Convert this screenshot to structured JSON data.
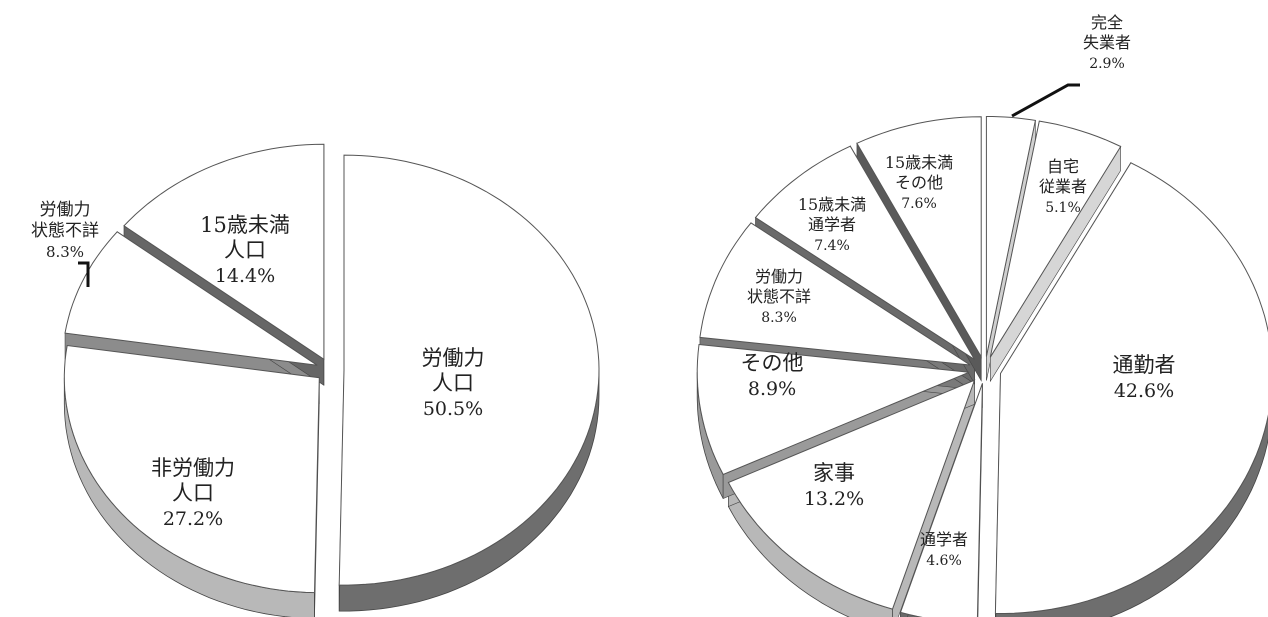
{
  "chart_data": [
    {
      "type": "pie",
      "style": "3d-exploded",
      "slices": [
        {
          "key": "labor",
          "label_lines": [
            "労働力",
            "人口"
          ],
          "value_label": "50.5%",
          "value": 50.5,
          "top_color": "#ffffff",
          "side_color": "#6e6e6e"
        },
        {
          "key": "nonlabor",
          "label_lines": [
            "非労働力",
            "人口"
          ],
          "value_label": "27.2%",
          "value": 27.2,
          "top_color": "#ffffff",
          "side_color": "#b8b8b8"
        },
        {
          "key": "unknown",
          "label_lines": [
            "労働力",
            "状態不詳"
          ],
          "value_label": "8.3%",
          "value": 8.3,
          "top_color": "#ffffff",
          "side_color": "#8c8c8c"
        },
        {
          "key": "under15",
          "label_lines": [
            "15歳未満",
            "人口"
          ],
          "value_label": "14.4%",
          "value": 14.4,
          "top_color": "#ffffff",
          "side_color": "#666666"
        }
      ]
    },
    {
      "type": "pie",
      "style": "3d-exploded",
      "slices": [
        {
          "key": "unemployed",
          "label_lines": [
            "完全",
            "失業者"
          ],
          "value_label": "2.9%",
          "value": 2.9,
          "top_color": "#ffffff",
          "side_color": "#d0d0d0"
        },
        {
          "key": "home_worker",
          "label_lines": [
            "自宅",
            "従業者"
          ],
          "value_label": "5.1%",
          "value": 5.1,
          "top_color": "#ffffff",
          "side_color": "#d6d6d6"
        },
        {
          "key": "commuter",
          "label_lines": [
            "通勤者"
          ],
          "value_label": "42.6%",
          "value": 42.6,
          "top_color": "#ffffff",
          "side_color": "#6e6e6e"
        },
        {
          "key": "student",
          "label_lines": [
            "通学者"
          ],
          "value_label": "4.6%",
          "value": 4.6,
          "top_color": "#ffffff",
          "side_color": "#6a6a6a"
        },
        {
          "key": "housework",
          "label_lines": [
            "家事"
          ],
          "value_label": "13.2%",
          "value": 13.2,
          "top_color": "#ffffff",
          "side_color": "#b8b8b8"
        },
        {
          "key": "other",
          "label_lines": [
            "その他"
          ],
          "value_label": "8.9%",
          "value": 8.9,
          "top_color": "#ffffff",
          "side_color": "#9a9a9a"
        },
        {
          "key": "unknown",
          "label_lines": [
            "労働力",
            "状態不詳"
          ],
          "value_label": "8.3%",
          "value": 8.3,
          "top_color": "#ffffff",
          "side_color": "#7a7a7a"
        },
        {
          "key": "under15_student",
          "label_lines": [
            "15歳未満",
            "通学者"
          ],
          "value_label": "7.4%",
          "value": 7.4,
          "top_color": "#ffffff",
          "side_color": "#6a6a6a"
        },
        {
          "key": "under15_other",
          "label_lines": [
            "15歳未満",
            "その他"
          ],
          "value_label": "7.6%",
          "value": 7.6,
          "top_color": "#ffffff",
          "side_color": "#5a5a5a"
        }
      ]
    }
  ]
}
